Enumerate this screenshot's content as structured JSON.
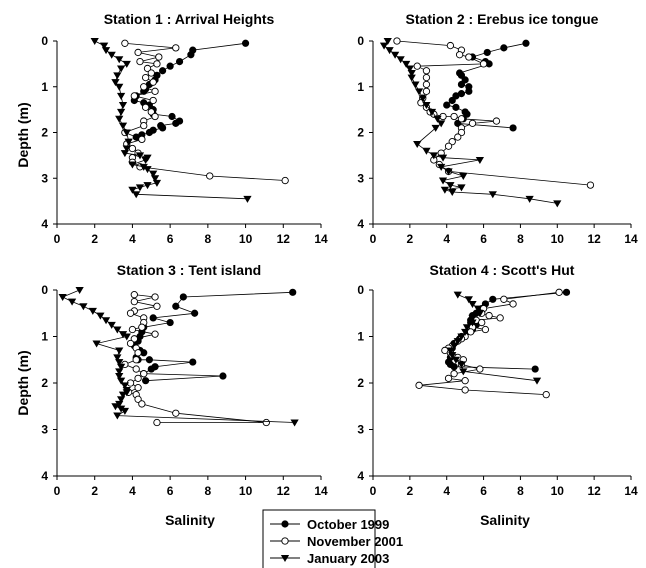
{
  "figure": {
    "ylabel": "Depth (m)",
    "xlabel": "Salinity"
  },
  "legend": [
    {
      "name": "October 1999",
      "marker": "filled-circle",
      "color": "#000000"
    },
    {
      "name": "November 2001",
      "marker": "open-circle",
      "color": "#000000"
    },
    {
      "name": "January 2003",
      "marker": "filled-triangle-down",
      "color": "#000000"
    }
  ],
  "chart_data": [
    {
      "type": "scatter",
      "title": "Station 1 : Arrival Heights",
      "xlim": [
        0,
        14
      ],
      "ylim": [
        4,
        0
      ],
      "xticks": [
        0,
        2,
        4,
        6,
        8,
        10,
        12,
        14
      ],
      "yticks": [
        0,
        1,
        2,
        3,
        4
      ],
      "ylabel": "Depth (m)",
      "xlabel": "",
      "series": [
        {
          "name": "October 1999",
          "x": [
            10.0,
            7.2,
            7.1,
            6.5,
            6.0,
            5.6,
            5.3,
            5.2,
            4.9,
            4.7,
            4.6,
            4.2,
            4.1,
            4.6,
            4.9,
            5.1,
            5.1,
            6.1,
            6.5,
            6.3,
            5.5,
            5.6,
            5.1,
            4.9,
            4.5,
            4.2
          ],
          "y": [
            0.05,
            0.2,
            0.3,
            0.45,
            0.55,
            0.65,
            0.75,
            0.85,
            0.95,
            1.05,
            1.1,
            1.2,
            1.3,
            1.35,
            1.4,
            1.5,
            1.6,
            1.65,
            1.75,
            1.8,
            1.85,
            1.9,
            1.95,
            2.0,
            2.05,
            2.1
          ]
        },
        {
          "name": "November 2001",
          "x": [
            3.6,
            6.3,
            4.3,
            5.4,
            4.4,
            5.3,
            4.8,
            5.0,
            4.7,
            5.1,
            4.6,
            5.2,
            4.1,
            5.1,
            4.7,
            5.0,
            5.2,
            4.6,
            4.6,
            3.6,
            4.5,
            3.7,
            4.0,
            4.3,
            4.0,
            4.0,
            4.4,
            8.1,
            12.1
          ],
          "y": [
            0.05,
            0.15,
            0.25,
            0.35,
            0.45,
            0.5,
            0.6,
            0.7,
            0.8,
            0.9,
            1.0,
            1.1,
            1.2,
            1.3,
            1.45,
            1.55,
            1.65,
            1.75,
            1.85,
            2.0,
            2.15,
            2.25,
            2.35,
            2.45,
            2.55,
            2.65,
            2.75,
            2.95,
            3.05
          ]
        },
        {
          "name": "January 2003",
          "x": [
            2.0,
            2.5,
            2.6,
            2.9,
            3.3,
            3.7,
            3.4,
            3.2,
            3.1,
            3.3,
            3.4,
            3.5,
            3.4,
            3.3,
            3.5,
            3.7,
            3.8,
            3.7,
            3.6,
            4.4,
            4.8,
            4.7,
            4.0,
            4.6,
            4.8,
            5.1,
            5.2,
            5.3,
            4.8,
            4.4,
            4.0,
            4.2,
            10.1
          ],
          "y": [
            0.0,
            0.1,
            0.2,
            0.3,
            0.4,
            0.5,
            0.6,
            0.75,
            0.9,
            1.0,
            1.2,
            1.4,
            1.55,
            1.7,
            1.85,
            2.0,
            2.2,
            2.35,
            2.45,
            2.5,
            2.55,
            2.6,
            2.7,
            2.75,
            2.8,
            2.9,
            3.0,
            3.1,
            3.15,
            3.2,
            3.25,
            3.35,
            3.45
          ]
        }
      ]
    },
    {
      "type": "scatter",
      "title": "Station 2 : Erebus ice tongue",
      "xlim": [
        0,
        14
      ],
      "ylim": [
        4,
        0
      ],
      "xticks": [
        0,
        2,
        4,
        6,
        8,
        10,
        12,
        14
      ],
      "yticks": [
        0,
        1,
        2,
        3,
        4
      ],
      "ylabel": "",
      "xlabel": "",
      "series": [
        {
          "name": "October 1999",
          "x": [
            8.3,
            7.1,
            6.2,
            5.4,
            6.1,
            6.3,
            4.7,
            4.8,
            5.0,
            4.8,
            5.2,
            5.2,
            4.8,
            4.5,
            4.3,
            4.0,
            4.5,
            5.0,
            5.1,
            4.9,
            4.6,
            7.6
          ],
          "y": [
            0.05,
            0.15,
            0.25,
            0.35,
            0.45,
            0.5,
            0.7,
            0.75,
            0.85,
            0.95,
            1.0,
            1.1,
            1.15,
            1.2,
            1.3,
            1.4,
            1.45,
            1.55,
            1.6,
            1.7,
            1.8,
            1.9
          ]
        },
        {
          "name": "November 2001",
          "x": [
            1.3,
            4.2,
            4.8,
            4.7,
            5.2,
            6.0,
            2.4,
            2.9,
            2.9,
            2.9,
            2.9,
            2.7,
            2.6,
            2.9,
            3.1,
            3.3,
            3.8,
            4.4,
            4.8,
            6.7,
            5.4,
            4.8,
            4.8,
            4.6,
            4.3,
            4.1,
            3.7,
            3.3,
            3.6,
            4.1,
            11.8
          ],
          "y": [
            0.0,
            0.1,
            0.2,
            0.3,
            0.35,
            0.5,
            0.55,
            0.65,
            0.8,
            0.95,
            1.1,
            1.25,
            1.35,
            1.45,
            1.55,
            1.6,
            1.65,
            1.65,
            1.7,
            1.75,
            1.8,
            1.9,
            2.0,
            2.1,
            2.2,
            2.3,
            2.45,
            2.6,
            2.7,
            2.85,
            3.15
          ]
        },
        {
          "name": "January 2003",
          "x": [
            0.8,
            0.6,
            0.9,
            1.2,
            1.5,
            1.8,
            2.0,
            2.1,
            2.1,
            2.3,
            2.5,
            2.7,
            2.9,
            3.2,
            3.5,
            3.7,
            3.4,
            2.4,
            2.9,
            3.3,
            3.8,
            5.8,
            3.7,
            4.1,
            4.9,
            3.8,
            4.2,
            4.8,
            3.9,
            4.3,
            6.5,
            8.5,
            10.0
          ],
          "y": [
            0.0,
            0.1,
            0.2,
            0.3,
            0.4,
            0.5,
            0.6,
            0.7,
            0.8,
            0.95,
            1.1,
            1.25,
            1.4,
            1.55,
            1.7,
            1.8,
            1.9,
            2.25,
            2.4,
            2.5,
            2.55,
            2.6,
            2.75,
            2.85,
            2.95,
            3.05,
            3.15,
            3.2,
            3.25,
            3.3,
            3.35,
            3.45,
            3.55
          ]
        }
      ]
    },
    {
      "type": "scatter",
      "title": "Station 3 : Tent island",
      "xlim": [
        0,
        14
      ],
      "ylim": [
        4,
        0
      ],
      "xticks": [
        0,
        2,
        4,
        6,
        8,
        10,
        12,
        14
      ],
      "yticks": [
        0,
        1,
        2,
        3,
        4
      ],
      "ylabel": "Depth (m)",
      "xlabel": "Salinity",
      "series": [
        {
          "name": "October 1999",
          "x": [
            12.5,
            6.7,
            6.3,
            7.3,
            5.1,
            6.0,
            4.6,
            4.5,
            4.4,
            4.3,
            4.1,
            4.4,
            4.6,
            4.2,
            4.3,
            4.9,
            7.2,
            5.2,
            5.0,
            4.6,
            8.8,
            4.7
          ],
          "y": [
            0.05,
            0.15,
            0.35,
            0.5,
            0.6,
            0.7,
            0.8,
            0.9,
            1.0,
            1.1,
            1.2,
            1.3,
            1.35,
            1.45,
            1.5,
            1.5,
            1.55,
            1.65,
            1.7,
            1.8,
            1.85,
            1.95
          ]
        },
        {
          "name": "November 2001",
          "x": [
            4.1,
            5.2,
            4.1,
            5.3,
            4.1,
            3.9,
            4.6,
            4.6,
            4.5,
            4.0,
            5.2,
            4.1,
            3.9,
            4.2,
            4.3,
            4.2,
            3.6,
            4.2,
            4.6,
            4.3,
            3.9,
            4.3,
            3.8,
            4.2,
            4.3,
            4.5,
            6.3,
            11.1,
            5.3
          ],
          "y": [
            0.1,
            0.15,
            0.25,
            0.35,
            0.45,
            0.5,
            0.6,
            0.7,
            0.8,
            0.85,
            0.95,
            1.05,
            1.15,
            1.25,
            1.35,
            1.5,
            1.6,
            1.7,
            1.8,
            1.9,
            2.0,
            2.1,
            2.2,
            2.25,
            2.35,
            2.45,
            2.65,
            2.85,
            2.85
          ]
        },
        {
          "name": "January 2003",
          "x": [
            1.2,
            0.3,
            0.8,
            1.4,
            1.9,
            2.3,
            2.6,
            2.9,
            3.2,
            3.5,
            3.7,
            2.1,
            3.3,
            3.2,
            3.3,
            3.4,
            3.3,
            3.3,
            3.4,
            3.6,
            3.7,
            3.7,
            3.5,
            3.4,
            3.3,
            3.1,
            3.4,
            3.6,
            3.2,
            12.6
          ],
          "y": [
            0.0,
            0.15,
            0.25,
            0.35,
            0.45,
            0.55,
            0.65,
            0.75,
            0.85,
            0.95,
            1.0,
            1.15,
            1.3,
            1.45,
            1.55,
            1.65,
            1.75,
            1.85,
            1.95,
            2.05,
            2.15,
            2.2,
            2.25,
            2.35,
            2.45,
            2.5,
            2.55,
            2.6,
            2.7,
            2.85
          ]
        }
      ]
    },
    {
      "type": "scatter",
      "title": "Station 4 : Scott's Hut",
      "xlim": [
        0,
        14
      ],
      "ylim": [
        4,
        0
      ],
      "xticks": [
        0,
        2,
        4,
        6,
        8,
        10,
        12,
        14
      ],
      "yticks": [
        0,
        1,
        2,
        3,
        4
      ],
      "ylabel": "",
      "xlabel": "Salinity",
      "series": [
        {
          "name": "October 1999",
          "x": [
            10.5,
            6.5,
            6.1,
            5.9,
            5.6,
            5.4,
            5.3,
            5.3,
            5.6,
            5.4,
            5.1,
            4.8,
            4.7,
            4.4,
            4.3,
            4.2,
            4.2,
            4.1,
            4.2,
            4.4,
            8.8
          ],
          "y": [
            0.05,
            0.2,
            0.3,
            0.4,
            0.5,
            0.55,
            0.65,
            0.7,
            0.75,
            0.85,
            0.9,
            1.0,
            1.05,
            1.15,
            1.25,
            1.35,
            1.45,
            1.55,
            1.6,
            1.65,
            1.7
          ]
        },
        {
          "name": "November 2001",
          "x": [
            10.1,
            7.1,
            7.6,
            6.0,
            5.9,
            6.3,
            6.9,
            5.6,
            5.9,
            5.4,
            6.1,
            5.3,
            5.0,
            4.8,
            4.6,
            4.3,
            4.1,
            3.9,
            4.2,
            4.3,
            4.6,
            4.9,
            4.8,
            5.8,
            4.4,
            4.1,
            5.0,
            2.5,
            5.0,
            9.4
          ],
          "y": [
            0.05,
            0.2,
            0.3,
            0.4,
            0.5,
            0.55,
            0.6,
            0.65,
            0.7,
            0.8,
            0.85,
            0.9,
            1.0,
            1.05,
            1.1,
            1.2,
            1.25,
            1.3,
            1.35,
            1.4,
            1.45,
            1.5,
            1.6,
            1.7,
            1.8,
            1.9,
            1.95,
            2.05,
            2.15,
            2.25
          ]
        },
        {
          "name": "January 2003",
          "x": [
            4.6,
            5.2,
            5.4,
            5.7,
            5.8,
            5.4,
            5.4,
            5.1,
            5.0,
            4.8,
            4.6,
            4.4,
            4.2,
            4.3,
            4.5,
            4.8,
            4.9,
            8.9
          ],
          "y": [
            0.1,
            0.2,
            0.3,
            0.4,
            0.5,
            0.6,
            0.7,
            0.8,
            0.9,
            1.0,
            1.1,
            1.2,
            1.3,
            1.4,
            1.5,
            1.6,
            1.75,
            1.95
          ]
        }
      ]
    }
  ]
}
